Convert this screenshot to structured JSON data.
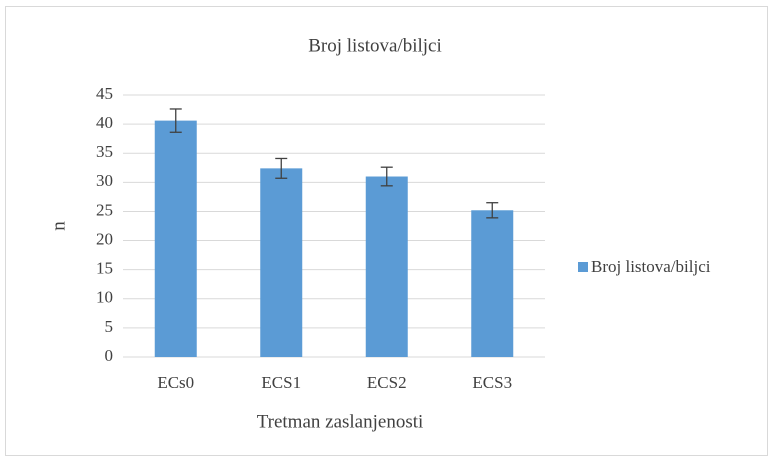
{
  "chart_data": {
    "type": "bar",
    "title": "Broj listova/biljci",
    "x_label": "Tretman zaslanjenosti",
    "y_label": "n",
    "categories": [
      "ECs0",
      "ECS1",
      "ECS2",
      "ECS3"
    ],
    "series": [
      {
        "name": "Broj listova/biljci",
        "color": "#5b9bd5",
        "values": [
          40.6,
          32.4,
          31,
          25.2
        ],
        "errors": [
          2.0,
          1.7,
          1.6,
          1.3
        ]
      }
    ],
    "ylim": [
      0,
      45
    ],
    "yticks": [
      0,
      5,
      10,
      15,
      20,
      25,
      30,
      35,
      40,
      45
    ],
    "grid": true,
    "legend": "right"
  }
}
